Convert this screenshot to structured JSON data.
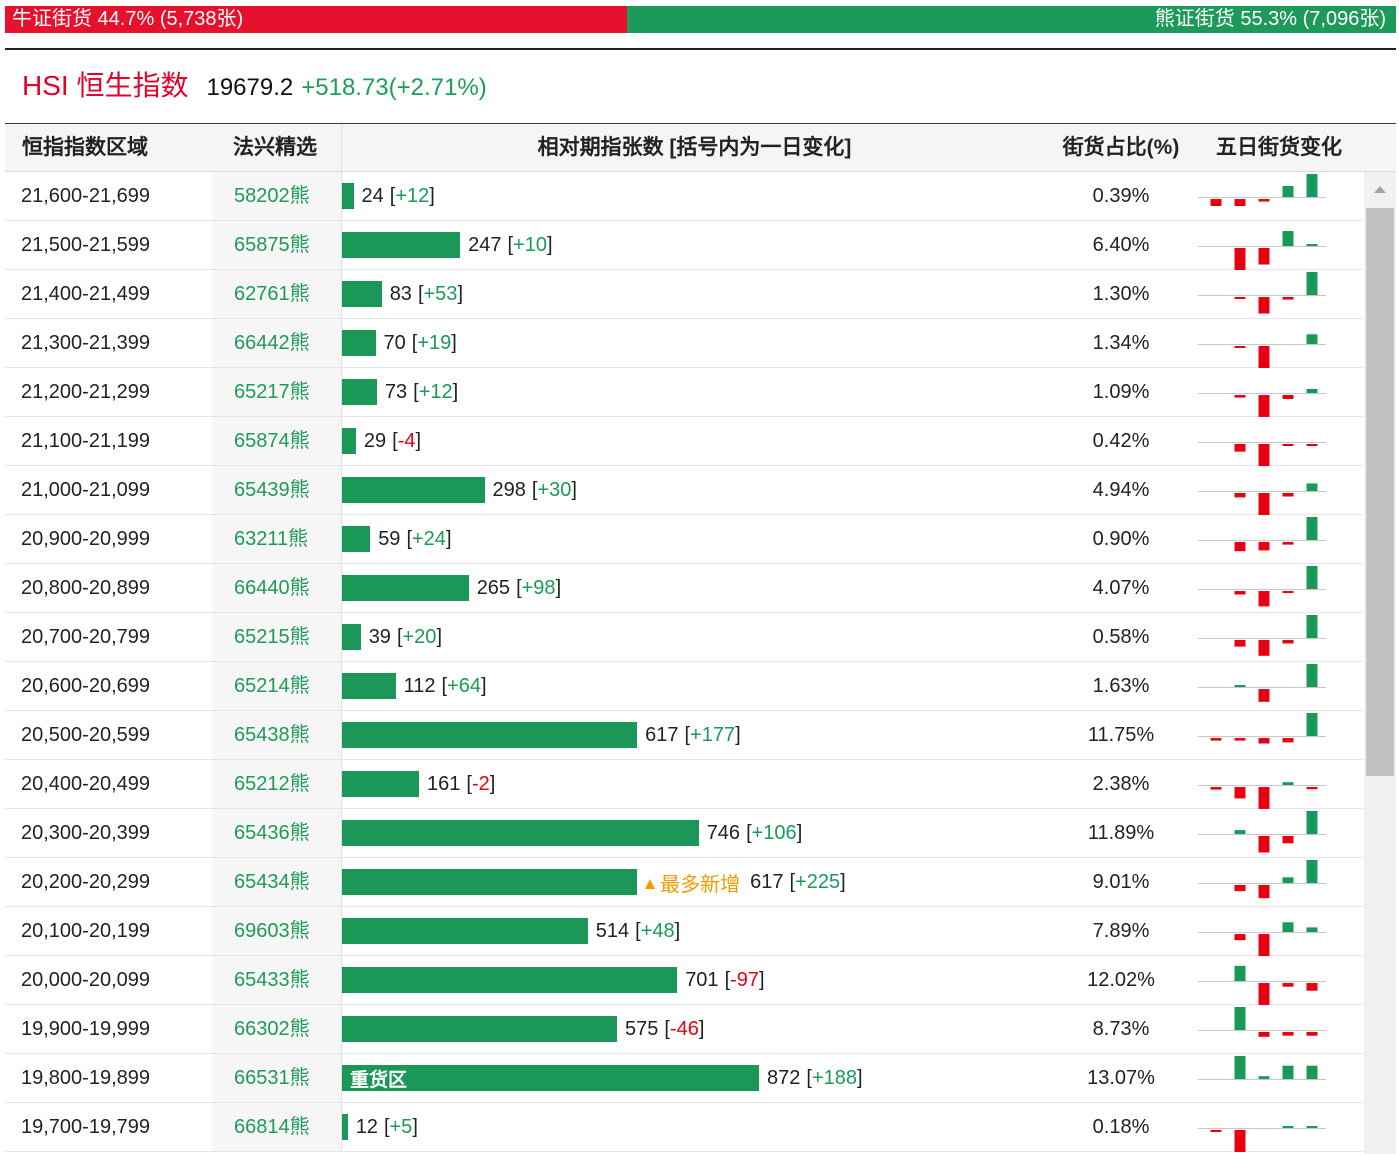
{
  "summary": {
    "bull": {
      "text": "牛证街货 44.7% (5,738张)",
      "pct": 44.7
    },
    "bear": {
      "text": "熊证街货 55.3% (7,096张)",
      "pct": 55.3
    }
  },
  "index": {
    "name": "HSI 恒生指数",
    "price": "19679.2",
    "change": "+518.73(+2.71%)"
  },
  "table": {
    "headers": {
      "range": "恒指指数区域",
      "pick": "法兴精选",
      "qty": "相对期指张数 [括号内为一日变化]",
      "share": "街货占比(%)",
      "five_day": "五日街货变化"
    },
    "rows": [
      {
        "range": "21,600-21,699",
        "code": "58202熊",
        "qty": 24,
        "change": "+12",
        "share": "0.39%",
        "five_day": [
          -0.32,
          -0.32,
          -0.12,
          0.48,
          1
        ]
      },
      {
        "range": "21,500-21,599",
        "code": "65875熊",
        "qty": 247,
        "change": "+10",
        "share": "6.40%",
        "five_day": [
          0,
          -1,
          -0.75,
          0.65,
          0.05
        ]
      },
      {
        "range": "21,400-21,499",
        "code": "62761熊",
        "qty": 83,
        "change": "+53",
        "share": "1.30%",
        "five_day": [
          0,
          -0.08,
          -0.75,
          -0.12,
          1
        ]
      },
      {
        "range": "21,300-21,399",
        "code": "66442熊",
        "qty": 70,
        "change": "+19",
        "share": "1.34%",
        "five_day": [
          0,
          -0.08,
          -1,
          0,
          0.42
        ]
      },
      {
        "range": "21,200-21,299",
        "code": "65217熊",
        "qty": 73,
        "change": "+12",
        "share": "1.09%",
        "five_day": [
          0,
          -0.12,
          -1,
          -0.18,
          0.18
        ]
      },
      {
        "range": "21,100-21,199",
        "code": "65874熊",
        "qty": 29,
        "change": "-4",
        "share": "0.42%",
        "five_day": [
          0,
          -0.35,
          -1,
          -0.06,
          -0.06
        ]
      },
      {
        "range": "21,000-21,099",
        "code": "65439熊",
        "qty": 298,
        "change": "+30",
        "share": "4.94%",
        "five_day": [
          0,
          -0.2,
          -1,
          -0.16,
          0.33
        ]
      },
      {
        "range": "20,900-20,999",
        "code": "63211熊",
        "qty": 59,
        "change": "+24",
        "share": "0.90%",
        "five_day": [
          0,
          -0.42,
          -0.38,
          -0.12,
          1
        ]
      },
      {
        "range": "20,800-20,899",
        "code": "66440熊",
        "qty": 265,
        "change": "+98",
        "share": "4.07%",
        "five_day": [
          0,
          -0.16,
          -0.7,
          -0.08,
          1
        ]
      },
      {
        "range": "20,700-20,799",
        "code": "65215熊",
        "qty": 39,
        "change": "+20",
        "share": "0.58%",
        "five_day": [
          0,
          -0.3,
          -0.72,
          -0.16,
          1
        ]
      },
      {
        "range": "20,600-20,699",
        "code": "65214熊",
        "qty": 112,
        "change": "+64",
        "share": "1.63%",
        "five_day": [
          0,
          0.08,
          -0.58,
          0,
          1
        ]
      },
      {
        "range": "20,500-20,599",
        "code": "65438熊",
        "qty": 617,
        "change": "+177",
        "share": "11.75%",
        "five_day": [
          -0.12,
          -0.12,
          -0.25,
          -0.2,
          1
        ]
      },
      {
        "range": "20,400-20,499",
        "code": "65212熊",
        "qty": 161,
        "change": "-2",
        "share": "2.38%",
        "five_day": [
          -0.12,
          -0.52,
          -1,
          0.12,
          -0.1
        ]
      },
      {
        "range": "20,300-20,399",
        "code": "65436熊",
        "qty": 746,
        "change": "+106",
        "share": "11.89%",
        "five_day": [
          0,
          0.17,
          -0.75,
          -0.33,
          1
        ]
      },
      {
        "range": "20,200-20,299",
        "code": "65434熊",
        "qty": 617,
        "change": "+225",
        "share": "9.01%",
        "five_day": [
          0,
          -0.28,
          -0.6,
          0.25,
          1
        ],
        "badge": {
          "icon": "triangle-up-icon",
          "text": "最多新增"
        }
      },
      {
        "range": "20,100-20,199",
        "code": "69603熊",
        "qty": 514,
        "change": "+48",
        "share": "7.89%",
        "five_day": [
          0,
          -0.28,
          -1,
          0.42,
          0.2
        ]
      },
      {
        "range": "20,000-20,099",
        "code": "65433熊",
        "qty": 701,
        "change": "-97",
        "share": "12.02%",
        "five_day": [
          0,
          0.66,
          -1,
          -0.17,
          -0.35
        ]
      },
      {
        "range": "19,900-19,999",
        "code": "66302熊",
        "qty": 575,
        "change": "-46",
        "share": "8.73%",
        "five_day": [
          0,
          1,
          -0.22,
          -0.17,
          -0.17
        ]
      },
      {
        "range": "19,800-19,899",
        "code": "66531熊",
        "qty": 872,
        "change": "+188",
        "share": "13.07%",
        "five_day": [
          0,
          1,
          0.12,
          0.58,
          0.58
        ],
        "bar_label": "重货区"
      },
      {
        "range": "19,700-19,799",
        "code": "66814熊",
        "qty": 12,
        "change": "+5",
        "share": "0.18%",
        "five_day": [
          -0.08,
          -1,
          0,
          0.07,
          0.07
        ]
      }
    ]
  },
  "scrollbar": {
    "scroll_fraction": 0,
    "visible_fraction": 0.6
  },
  "colors": {
    "bull": "#e8112d",
    "bear": "#1d9a5a",
    "bar": "#1b9857",
    "up": "#1a9a58",
    "down": "#e60012",
    "accent": "#f29b00",
    "index_name": "#e4002b"
  }
}
